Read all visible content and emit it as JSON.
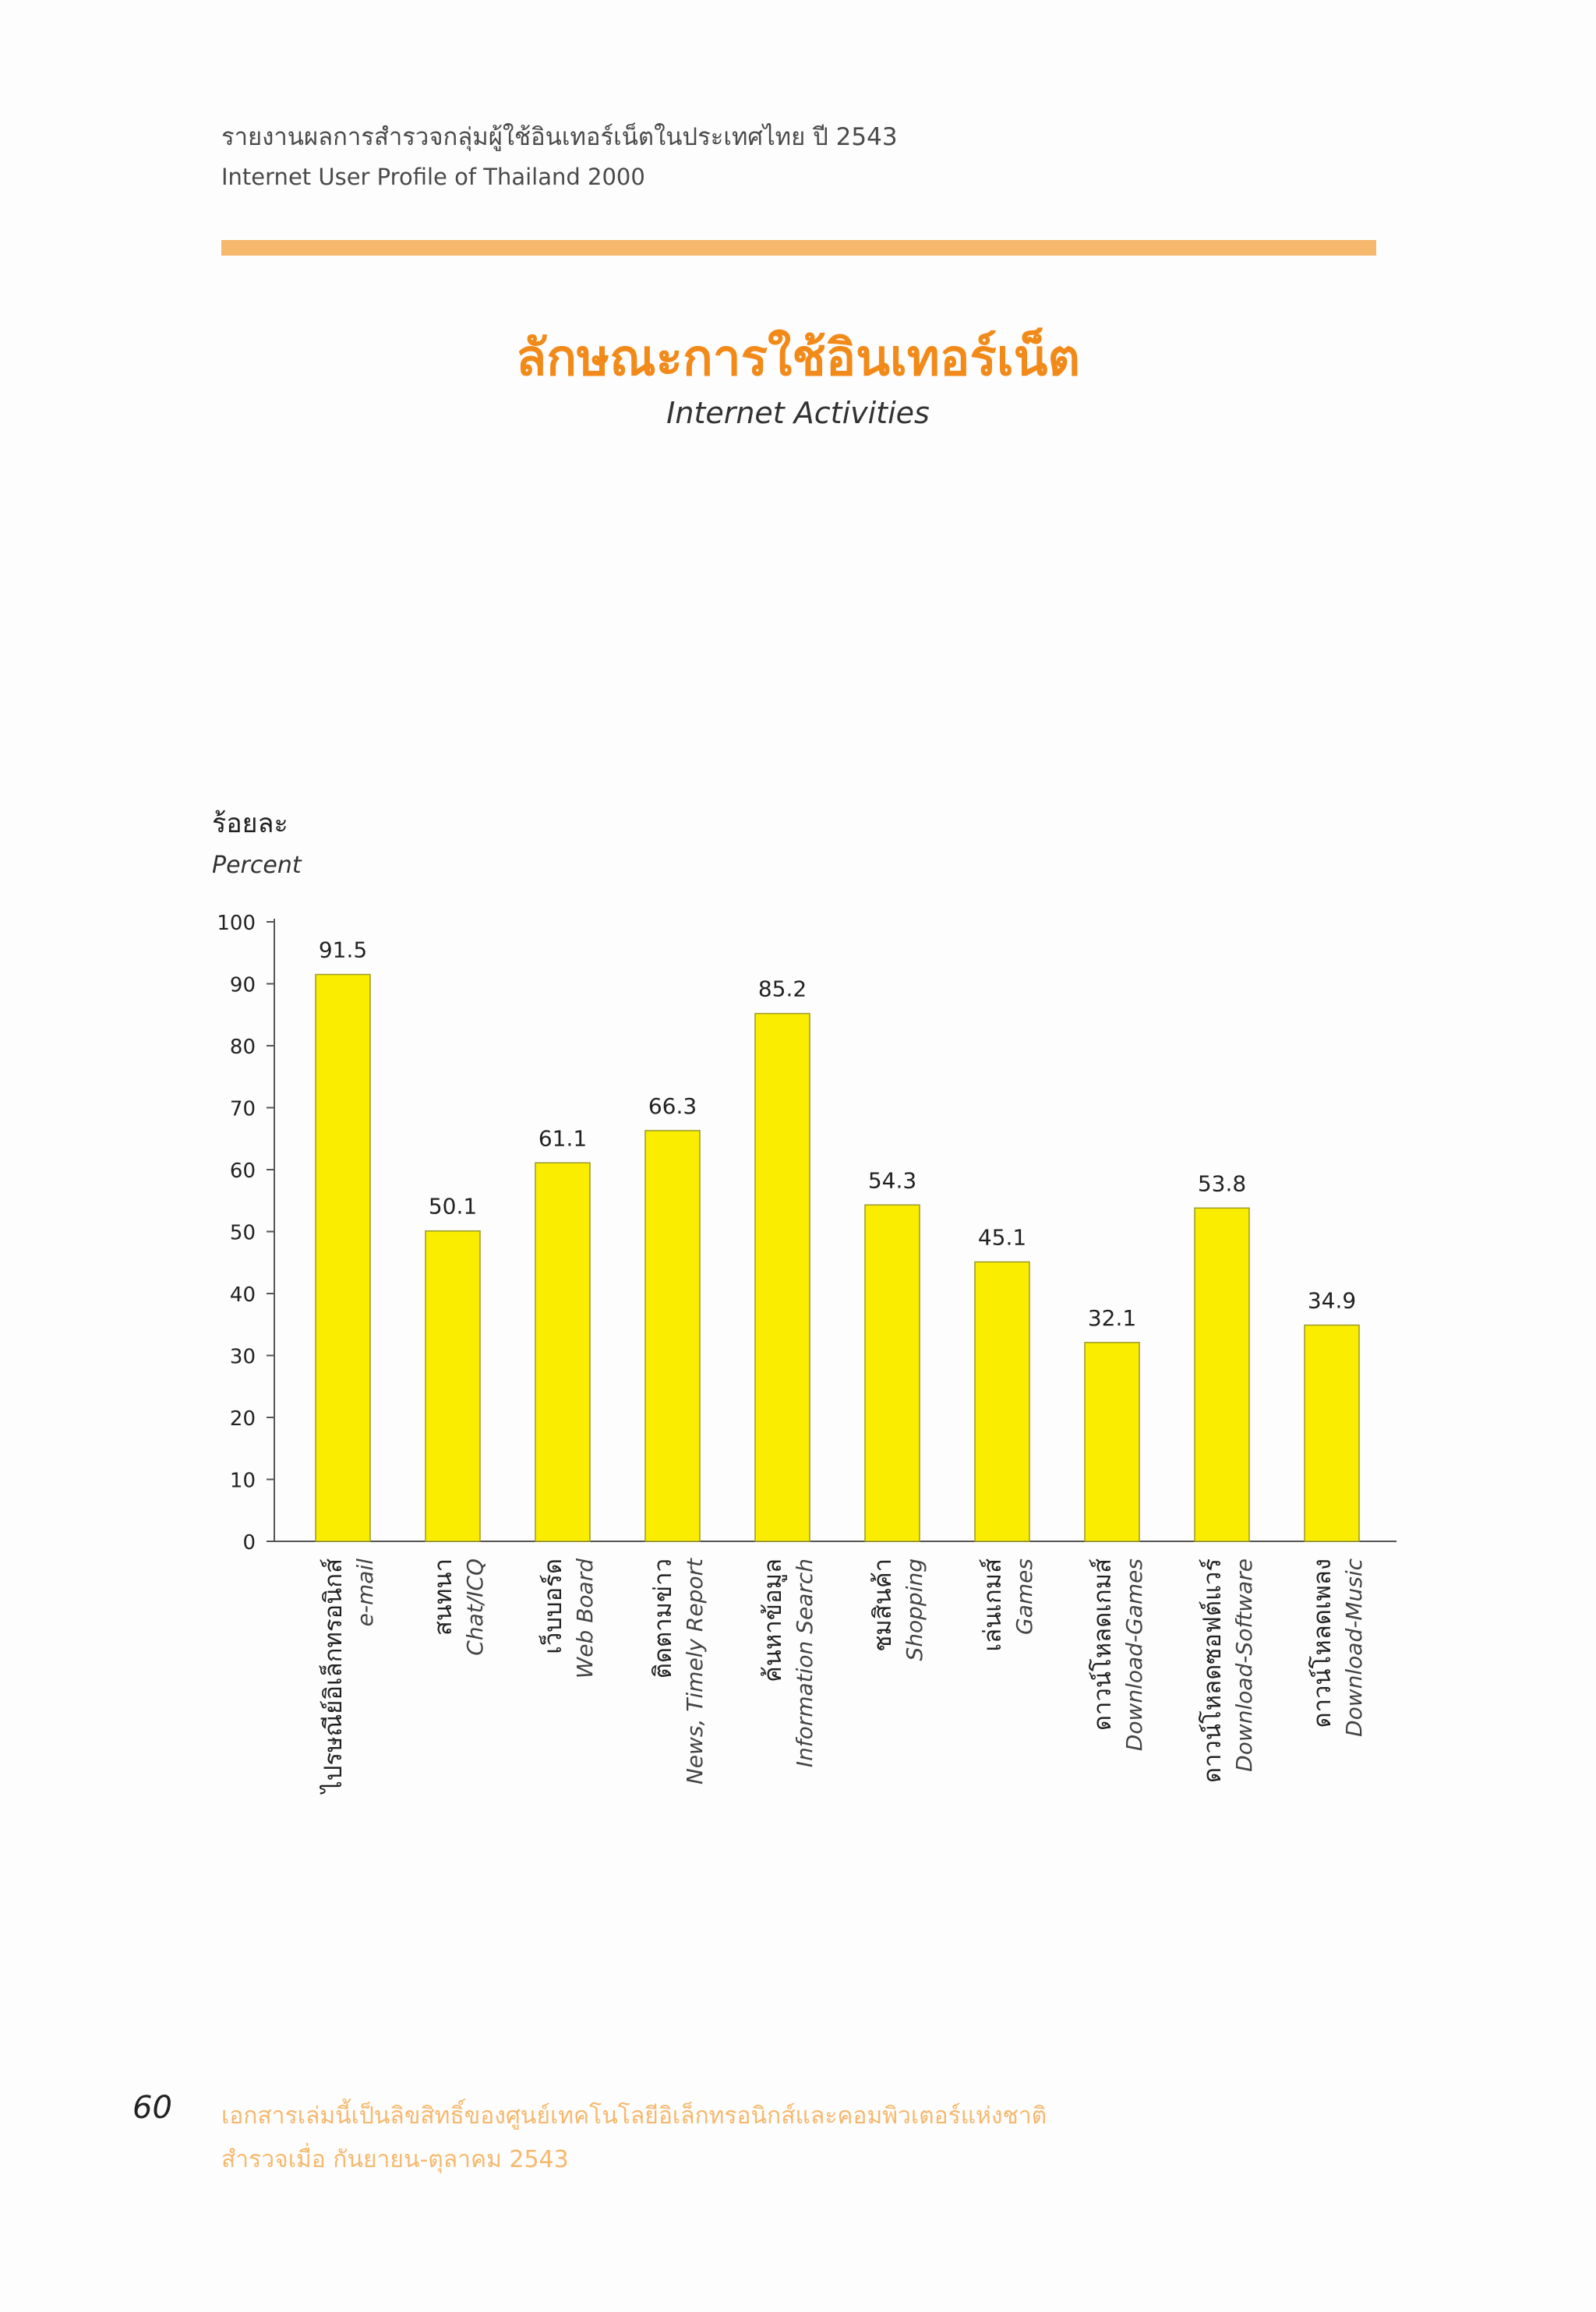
{
  "header": {
    "line_th": "รายงานผลการสำรวจกลุ่มผู้ใช้อินเทอร์เน็ตในประเทศไทย ปี 2543",
    "line_en": "Internet User Profile of Thailand 2000"
  },
  "title": {
    "th": "ลักษณะการใช้อินเทอร์เน็ต",
    "en": "Internet Activities"
  },
  "chart_data": {
    "type": "bar",
    "ylabel_th": "ร้อยละ",
    "ylabel_en": "Percent",
    "ylim": [
      0,
      100
    ],
    "yticks": [
      0,
      10,
      20,
      30,
      40,
      50,
      60,
      70,
      80,
      90,
      100
    ],
    "grid": false,
    "categories": [
      {
        "th": "ไปรษณีย์อิเล็กทรอนิกส์",
        "en": "e-mail"
      },
      {
        "th": "สนทนา",
        "en": "Chat/ICQ"
      },
      {
        "th": "เว็บบอร์ด",
        "en": "Web Board"
      },
      {
        "th": "ติดตามข่าว",
        "en": "News, Timely Report"
      },
      {
        "th": "ค้นหาข้อมูล",
        "en": "Information Search"
      },
      {
        "th": "ชมสินค้า",
        "en": "Shopping"
      },
      {
        "th": "เล่นเกมส์",
        "en": "Games"
      },
      {
        "th": "ดาวน์โหลดเกมส์",
        "en": "Download-Games"
      },
      {
        "th": "ดาวน์โหลดซอฟต์แวร์",
        "en": "Download-Software"
      },
      {
        "th": "ดาวน์โหลดเพลง",
        "en": "Download-Music"
      }
    ],
    "values": [
      91.5,
      50.1,
      61.1,
      66.3,
      85.2,
      54.3,
      45.1,
      32.1,
      53.8,
      34.9
    ],
    "value_labels": [
      "91.5",
      "50.1",
      "61.1",
      "66.3",
      "85.2",
      "54.3",
      "45.1",
      "32.1",
      "53.8",
      "34.9"
    ],
    "bar_color": "#fbed00",
    "bar_edge_color": "#9a9a2a"
  },
  "footer": {
    "page_number": "60",
    "line1": "เอกสารเล่มนี้เป็นลิขสิทธิ์ของศูนย์เทคโนโลยีอิเล็กทรอนิกส์และคอมพิวเตอร์แห่งชาติ",
    "line2": "สำรวจเมื่อ กันยายน-ตุลาคม 2543"
  }
}
